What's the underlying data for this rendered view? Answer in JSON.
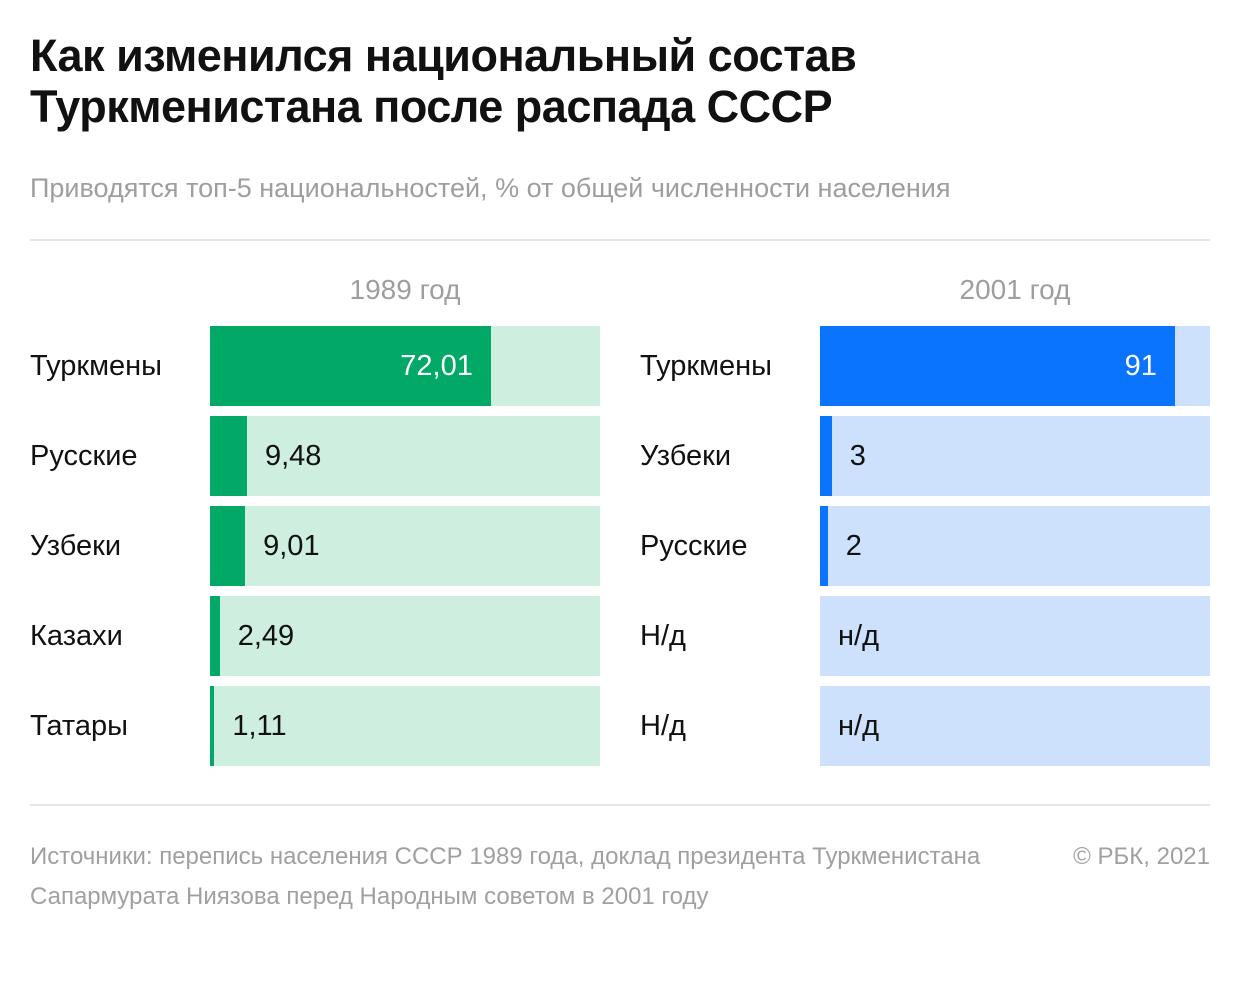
{
  "title": "Как изменился национальный состав\nТуркменистана после распада СССР",
  "subtitle": "Приводятся топ-5 национальностей, % от общей численности населения",
  "colors": {
    "green": "#02a866",
    "green_light": "#ceeee0",
    "blue": "#0a74ff",
    "blue_light": "#cde1fd"
  },
  "chart_data": [
    {
      "type": "bar",
      "title": "1989 год",
      "xlim": [
        0,
        100
      ],
      "color": "#02a866",
      "track_color": "#ceeee0",
      "categories": [
        "Туркмены",
        "Русские",
        "Узбеки",
        "Казахи",
        "Татары"
      ],
      "values": [
        72.01,
        9.48,
        9.01,
        2.49,
        1.11
      ],
      "value_labels": [
        "72,01",
        "9,48",
        "9,01",
        "2,49",
        "1,11"
      ]
    },
    {
      "type": "bar",
      "title": "2001 год",
      "xlim": [
        0,
        100
      ],
      "color": "#0a74ff",
      "track_color": "#cde1fd",
      "categories": [
        "Туркмены",
        "Узбеки",
        "Русские",
        "Н/д",
        "Н/д"
      ],
      "values": [
        91,
        3,
        2,
        null,
        null
      ],
      "value_labels": [
        "91",
        "3",
        "2",
        "н/д",
        "н/д"
      ]
    }
  ],
  "footer": {
    "source": "Источники: перепись населения СССР 1989 года, доклад президента Туркменистана Сапармурата Ниязова перед Народным советом в 2001 году",
    "copyright": "© РБК, 2021"
  }
}
